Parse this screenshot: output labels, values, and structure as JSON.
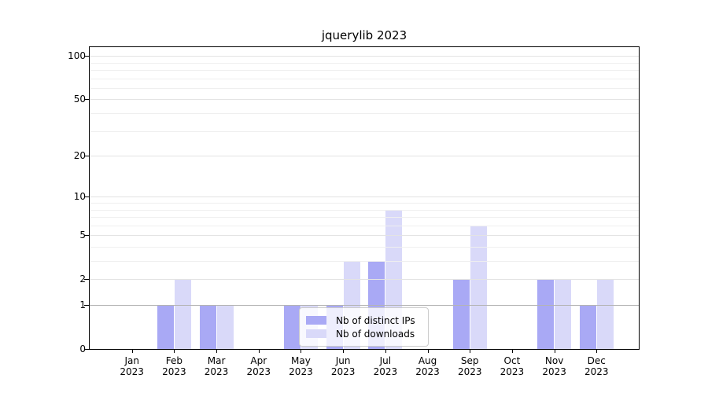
{
  "title": "jquerylib 2023",
  "chart_data": {
    "type": "bar",
    "title": "jquerylib 2023",
    "categories": [
      "Jan 2023",
      "Feb 2023",
      "Mar 2023",
      "Apr 2023",
      "May 2023",
      "Jun 2023",
      "Jul 2023",
      "Aug 2023",
      "Sep 2023",
      "Oct 2023",
      "Nov 2023",
      "Dec 2023"
    ],
    "x_tick_labels": [
      {
        "month": "Jan",
        "year": "2023"
      },
      {
        "month": "Feb",
        "year": "2023"
      },
      {
        "month": "Mar",
        "year": "2023"
      },
      {
        "month": "Apr",
        "year": "2023"
      },
      {
        "month": "May",
        "year": "2023"
      },
      {
        "month": "Jun",
        "year": "2023"
      },
      {
        "month": "Jul",
        "year": "2023"
      },
      {
        "month": "Aug",
        "year": "2023"
      },
      {
        "month": "Sep",
        "year": "2023"
      },
      {
        "month": "Oct",
        "year": "2023"
      },
      {
        "month": "Nov",
        "year": "2023"
      },
      {
        "month": "Dec",
        "year": "2023"
      }
    ],
    "series": [
      {
        "name": "Nb of distinct IPs",
        "color": "#a9a9f5",
        "values": [
          0,
          1,
          1,
          0,
          1,
          1,
          3,
          0,
          2,
          0,
          2,
          1
        ]
      },
      {
        "name": "Nb of downloads",
        "color": "#d9d9f9",
        "values": [
          0,
          2,
          1,
          0,
          1,
          3,
          8,
          0,
          6,
          0,
          2,
          2
        ]
      }
    ],
    "y_scale": "log10(1+x)",
    "ylim": [
      0,
      115
    ],
    "y_major_ticks": [
      0,
      1,
      2,
      5,
      10,
      20,
      50,
      100
    ],
    "y_minor_ticks": [
      3,
      4,
      6,
      7,
      8,
      9,
      30,
      40,
      60,
      70,
      80,
      90
    ],
    "grid": "on",
    "legend_position": "lower-center",
    "xlabel": "",
    "ylabel": ""
  },
  "legend": {
    "items": [
      {
        "label": "Nb of distinct IPs",
        "color": "#a9a9f5"
      },
      {
        "label": "Nb of downloads",
        "color": "#d9d9f9"
      }
    ]
  },
  "colors": {
    "axis": "#000000",
    "grid_major": "#e3e3e3",
    "grid_minor": "#efefef",
    "grid_baseline_one": "#b4b4b4",
    "legend_border": "#cbcbcb"
  }
}
